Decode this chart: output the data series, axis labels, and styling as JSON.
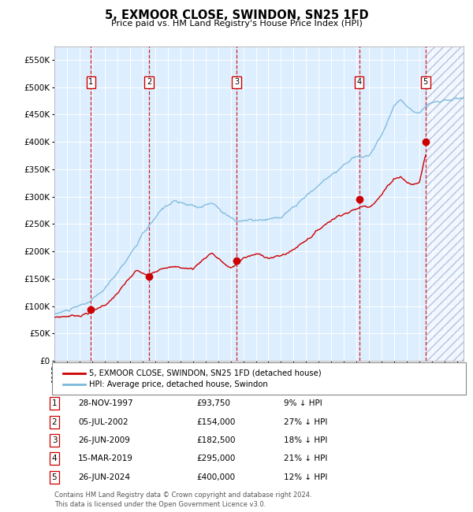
{
  "title": "5, EXMOOR CLOSE, SWINDON, SN25 1FD",
  "subtitle": "Price paid vs. HM Land Registry's House Price Index (HPI)",
  "ylim": [
    0,
    575000
  ],
  "yticks": [
    0,
    50000,
    100000,
    150000,
    200000,
    250000,
    300000,
    350000,
    400000,
    450000,
    500000,
    550000
  ],
  "xlim_start": 1995.0,
  "xlim_end": 2027.5,
  "sale_dates": [
    1997.91,
    2002.51,
    2009.48,
    2019.21,
    2024.48
  ],
  "sale_prices": [
    93750,
    154000,
    182500,
    295000,
    400000
  ],
  "sale_labels": [
    "1",
    "2",
    "3",
    "4",
    "5"
  ],
  "hpi_color": "#7ab8d9",
  "price_color": "#cc0000",
  "background_color": "#ddeeff",
  "legend_label_price": "5, EXMOOR CLOSE, SWINDON, SN25 1FD (detached house)",
  "legend_label_hpi": "HPI: Average price, detached house, Swindon",
  "table_entries": [
    {
      "label": "1",
      "date": "28-NOV-1997",
      "price": "£93,750",
      "pct": "9% ↓ HPI"
    },
    {
      "label": "2",
      "date": "05-JUL-2002",
      "price": "£154,000",
      "pct": "27% ↓ HPI"
    },
    {
      "label": "3",
      "date": "26-JUN-2009",
      "price": "£182,500",
      "pct": "18% ↓ HPI"
    },
    {
      "label": "4",
      "date": "15-MAR-2019",
      "price": "£295,000",
      "pct": "21% ↓ HPI"
    },
    {
      "label": "5",
      "date": "26-JUN-2024",
      "price": "£400,000",
      "pct": "12% ↓ HPI"
    }
  ],
  "footer": "Contains HM Land Registry data © Crown copyright and database right 2024.\nThis data is licensed under the Open Government Licence v3.0."
}
